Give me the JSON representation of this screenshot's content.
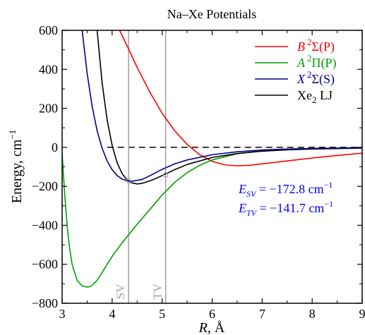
{
  "chart_data": {
    "type": "line",
    "title": "Na–Xe Potentials",
    "xlabel": {
      "var": "R",
      "unit": ", Å"
    },
    "ylabel": {
      "text": "Energy, cm",
      "sup": "−1"
    },
    "xlim": [
      3,
      9
    ],
    "ylim": [
      -800,
      600
    ],
    "xticks": [
      3,
      4,
      5,
      6,
      7,
      8,
      9
    ],
    "yticks": [
      -800,
      -600,
      -400,
      -200,
      0,
      200,
      400,
      600
    ],
    "ytick_labels": [
      "−800",
      "−600",
      "−400",
      "−200",
      "0",
      "200",
      "400",
      "600"
    ],
    "grid": false,
    "legend_position": "top-right",
    "colors": {
      "B": "#ff0000",
      "A": "#00a000",
      "X": "#00008b",
      "LJ": "#000000",
      "markers": "#a0a0a0",
      "annot": "#0000ff"
    },
    "legend": [
      {
        "key": "B",
        "italic": "B",
        "sup": "2",
        "rest": "Σ(P)",
        "color": "#ff0000"
      },
      {
        "key": "A",
        "italic": "A",
        "sup": "2",
        "rest": "Π(P)",
        "color": "#00a000"
      },
      {
        "key": "X",
        "italic": "X",
        "sup": "2",
        "rest": "Σ(S)",
        "color": "#00008b"
      },
      {
        "key": "LJ",
        "italic": "",
        "main": "Xe",
        "sub": "2",
        "rest": " LJ",
        "color": "#000000"
      }
    ],
    "series": [
      {
        "key": "B",
        "x": [
          4.15,
          4.3,
          4.5,
          4.75,
          5.0,
          5.25,
          5.5,
          5.75,
          6.0,
          6.25,
          6.5,
          6.75,
          7.0,
          7.5,
          8.0,
          8.5,
          9.0
        ],
        "y": [
          600,
          520,
          410,
          285,
          175,
          85,
          15,
          -38,
          -72,
          -90,
          -95,
          -92,
          -85,
          -70,
          -55,
          -42,
          -30
        ]
      },
      {
        "key": "A",
        "x": [
          3.0,
          3.05,
          3.1,
          3.15,
          3.2,
          3.3,
          3.4,
          3.5,
          3.55,
          3.6,
          3.7,
          3.8,
          3.9,
          4.0,
          4.2,
          4.5,
          4.75,
          5.0,
          5.25,
          5.5,
          5.75,
          6.0,
          6.5,
          7.0,
          7.5,
          8.0,
          9.0
        ],
        "y": [
          -30,
          -235,
          -400,
          -520,
          -600,
          -683,
          -711,
          -717,
          -715,
          -708,
          -682,
          -642,
          -600,
          -560,
          -490,
          -395,
          -320,
          -245,
          -180,
          -130,
          -92,
          -65,
          -33,
          -18,
          -10,
          -6,
          -2
        ]
      },
      {
        "key": "X",
        "x": [
          3.4,
          3.5,
          3.6,
          3.7,
          3.8,
          3.9,
          4.0,
          4.1,
          4.2,
          4.3,
          4.4,
          4.6,
          4.8,
          5.0,
          5.25,
          5.5,
          6.0,
          6.5,
          7.0,
          7.5,
          8.0,
          9.0
        ],
        "y": [
          600,
          380,
          210,
          85,
          -5,
          -70,
          -115,
          -145,
          -163,
          -172,
          -174,
          -165,
          -140,
          -113,
          -85,
          -65,
          -38,
          -23,
          -14,
          -9,
          -6,
          -3
        ]
      },
      {
        "key": "LJ",
        "x": [
          3.7,
          3.8,
          3.9,
          4.0,
          4.1,
          4.2,
          4.3,
          4.4,
          4.5,
          4.6,
          4.8,
          5.0,
          5.25,
          5.5,
          6.0,
          6.5,
          7.0,
          7.5,
          8.0,
          9.0
        ],
        "y": [
          600,
          330,
          140,
          10,
          -80,
          -135,
          -168,
          -183,
          -188,
          -185,
          -168,
          -145,
          -115,
          -88,
          -52,
          -32,
          -20,
          -13,
          -9,
          -4
        ]
      }
    ],
    "reference_line": {
      "y": 0,
      "x_start": 3.9,
      "style": "dashed"
    },
    "vertical_lines": [
      {
        "x": 4.33,
        "label": "SV"
      },
      {
        "x": 5.07,
        "label": "TV"
      }
    ],
    "markers": [
      {
        "x": 4.33,
        "y": -172.8
      },
      {
        "x": 5.07,
        "y": -141.7
      }
    ],
    "annotations": [
      {
        "var": "E",
        "sub": "SV",
        "value": " = −172.8 cm",
        "sup": "−1"
      },
      {
        "var": "E",
        "sub": "TV",
        "value": " = −141.7 cm",
        "sup": "−1"
      }
    ]
  }
}
